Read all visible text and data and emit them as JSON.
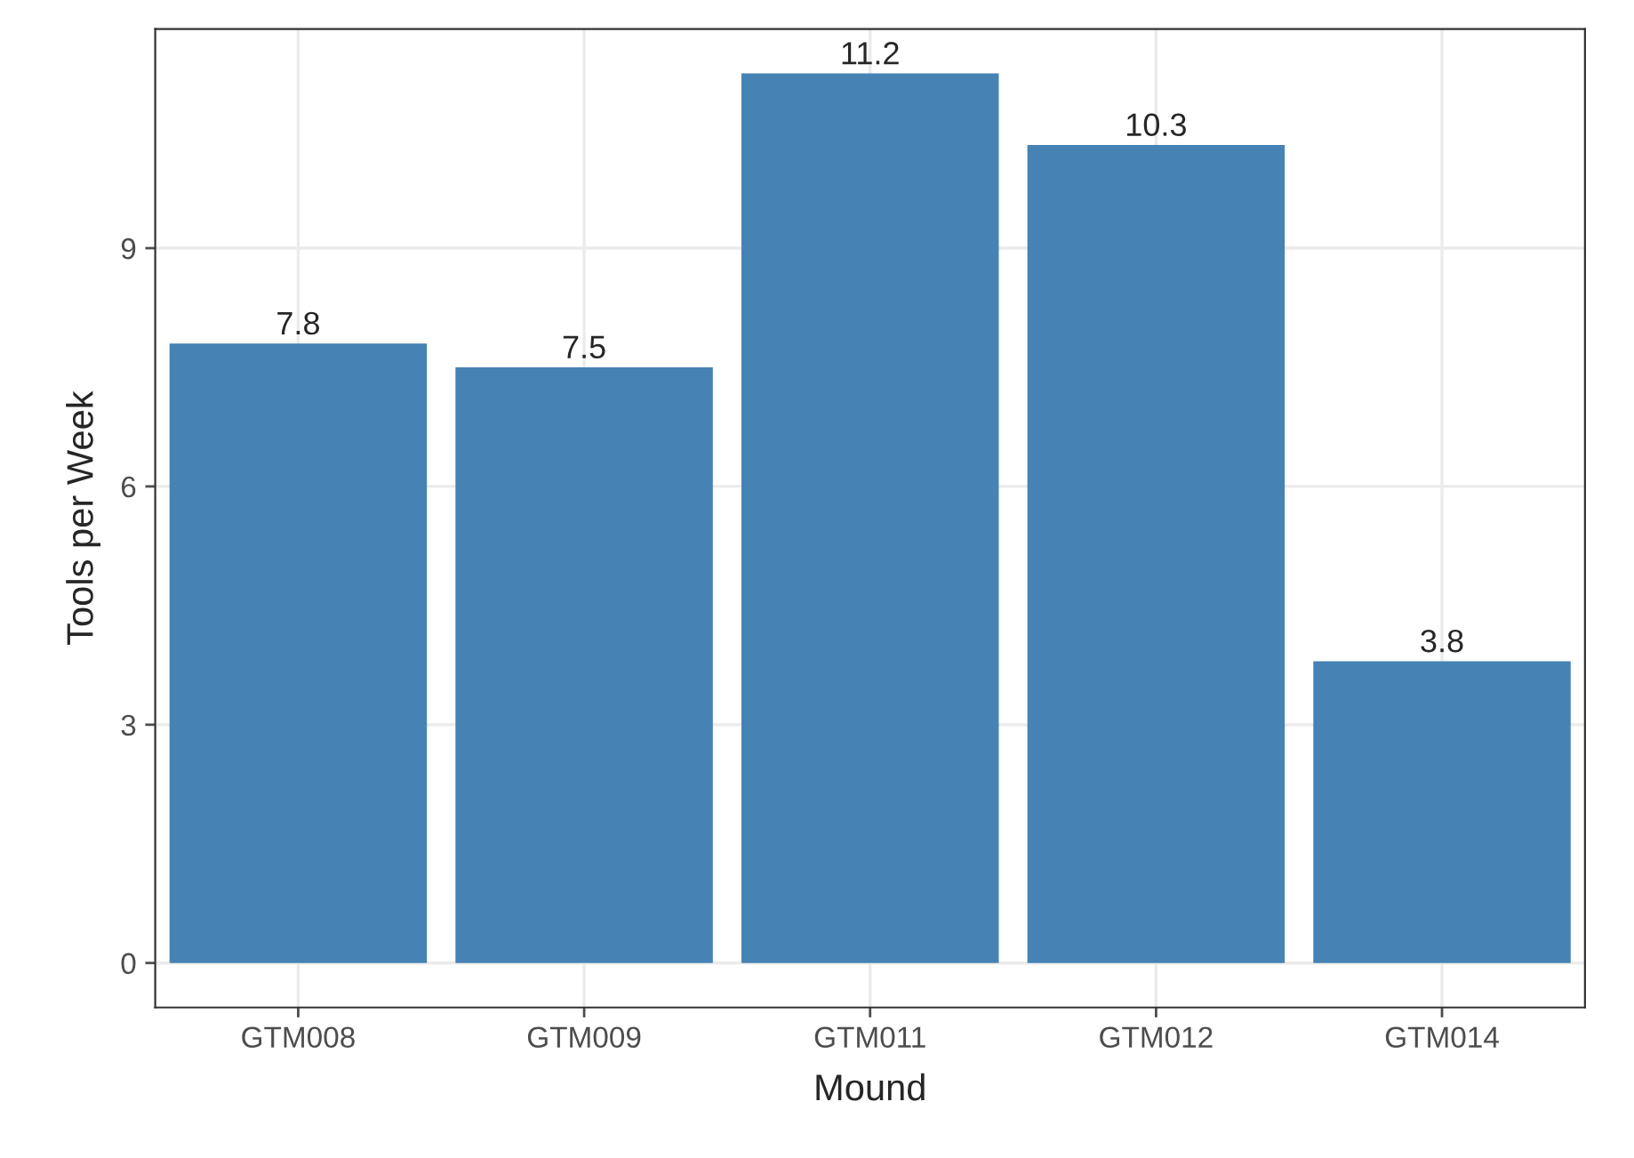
{
  "chart_data": {
    "type": "bar",
    "xlabel": "Mound",
    "ylabel": "Tools per Week",
    "categories": [
      "GTM008",
      "GTM009",
      "GTM011",
      "GTM012",
      "GTM014"
    ],
    "values": [
      7.8,
      7.5,
      11.2,
      10.3,
      3.8
    ],
    "color": "#4682b4",
    "ylim": [
      -0.56,
      11.76
    ],
    "yticks": [
      0,
      3,
      6,
      9
    ],
    "grid": true,
    "data_labels": true
  }
}
